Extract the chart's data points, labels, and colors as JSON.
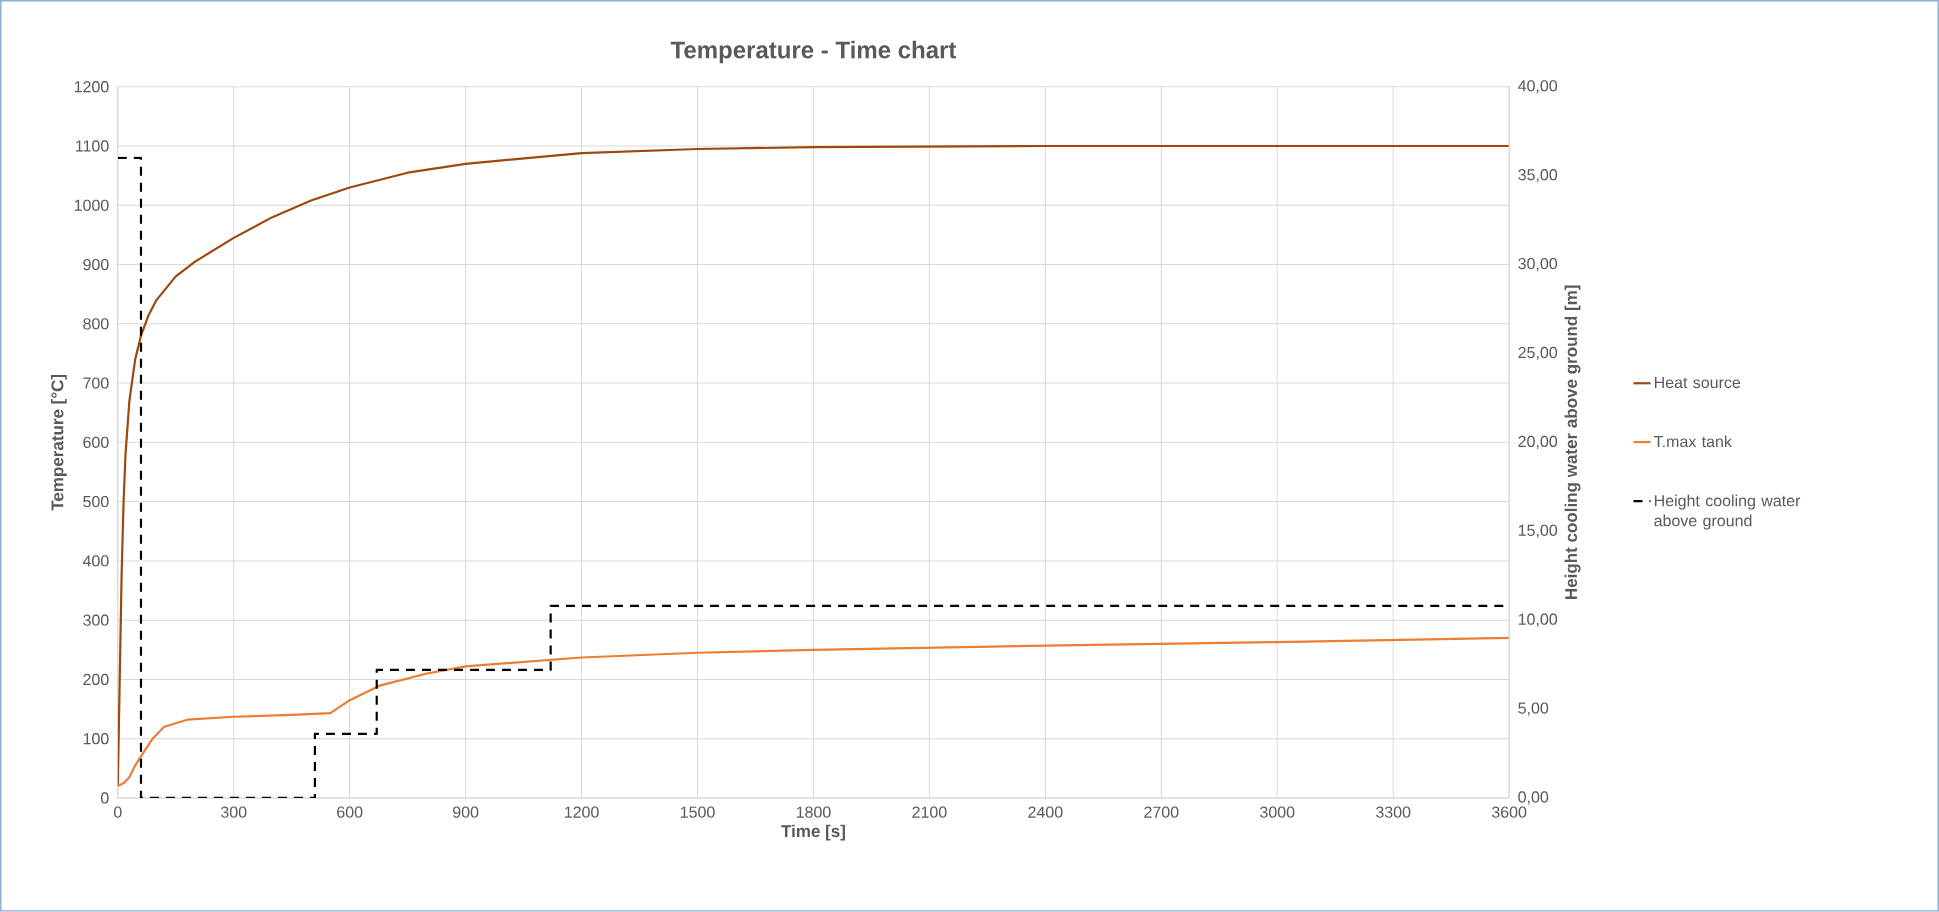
{
  "chart_data": {
    "type": "line",
    "title": "Temperature - Time chart",
    "xlabel": "Time [s]",
    "ylabel": "Temperature [°C]",
    "y2label": "Height cooling water above ground [m]",
    "xlim": [
      0,
      3600
    ],
    "xticks": [
      0,
      300,
      600,
      900,
      1200,
      1500,
      1800,
      2100,
      2400,
      2700,
      3000,
      3300,
      3600
    ],
    "ylim": [
      0,
      1200
    ],
    "yticks": [
      0,
      100,
      200,
      300,
      400,
      500,
      600,
      700,
      800,
      900,
      1000,
      1100,
      1200
    ],
    "y2lim": [
      0,
      40
    ],
    "y2ticks": [
      {
        "value": 0,
        "label": "0,00"
      },
      {
        "value": 5,
        "label": "5,00"
      },
      {
        "value": 10,
        "label": "10,00"
      },
      {
        "value": 15,
        "label": "15,00"
      },
      {
        "value": 20,
        "label": "20,00"
      },
      {
        "value": 25,
        "label": "25,00"
      },
      {
        "value": 30,
        "label": "30,00"
      },
      {
        "value": 35,
        "label": "35,00"
      },
      {
        "value": 40,
        "label": "40,00"
      }
    ],
    "grid": true,
    "legend": "right",
    "marker": "none",
    "series": [
      {
        "name": "Heat source",
        "color": "#9e480e",
        "x": [
          0,
          5,
          10,
          15,
          20,
          30,
          45,
          60,
          80,
          100,
          150,
          200,
          300,
          400,
          500,
          600,
          750,
          900,
          1200,
          1500,
          1800,
          2400,
          3000,
          3600
        ],
        "values": [
          20,
          200,
          380,
          500,
          580,
          670,
          740,
          780,
          815,
          840,
          880,
          905,
          945,
          980,
          1008,
          1030,
          1055,
          1070,
          1088,
          1095,
          1098,
          1100,
          1100,
          1100
        ]
      },
      {
        "name": "T.max tank",
        "color": "#ed7d31",
        "x": [
          0,
          15,
          30,
          45,
          60,
          90,
          120,
          180,
          300,
          450,
          550,
          600,
          680,
          800,
          900,
          1200,
          1500,
          1800,
          2400,
          3000,
          3600
        ],
        "values": [
          20,
          25,
          35,
          55,
          70,
          100,
          120,
          132,
          137,
          140,
          143,
          165,
          190,
          210,
          222,
          237,
          245,
          250,
          257,
          263,
          270
        ]
      },
      {
        "name": "Height cooling water above ground",
        "type": "step",
        "axis": "y2",
        "color": "#000000",
        "line_style": "dashed",
        "x": [
          0,
          60,
          510,
          670,
          1120,
          3600
        ],
        "values": [
          36,
          0,
          3.6,
          7.2,
          10.8,
          10.8
        ]
      }
    ]
  }
}
